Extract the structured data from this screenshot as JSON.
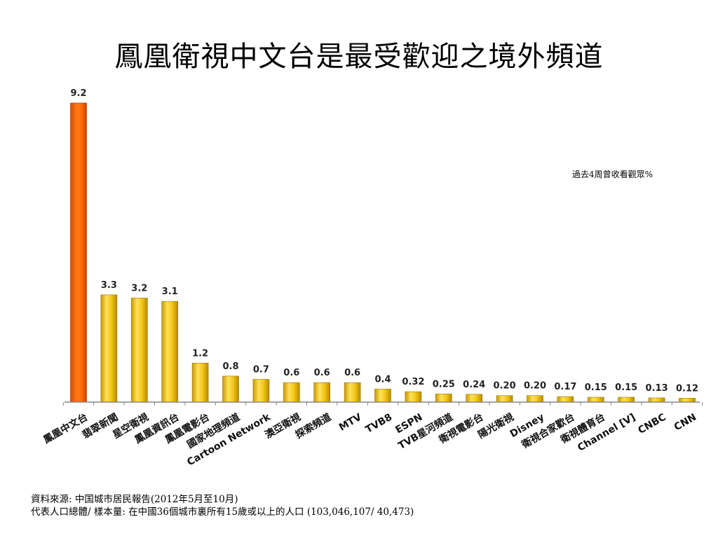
{
  "colors": {
    "highlight_bar": "#ff6a00",
    "bar": "#f0c419",
    "axis": "#888888"
  },
  "chart_data": {
    "type": "bar",
    "title": "鳳凰衛視中文台是最受歡迎之境外頻道",
    "series_note": "過去4周曾收看觀眾%",
    "categories": [
      "鳳凰中文台",
      "翡翠新聞",
      "星空衛視",
      "鳳凰資訊台",
      "鳳凰電影台",
      "國家地理頻道",
      "Cartoon Network",
      "澳亞衛視",
      "探索頻道",
      "MTV",
      "TVB8",
      "ESPN",
      "TVB星河頻道",
      "衛視電影台",
      "陽光衛視",
      "Disney",
      "衛視合家歡台",
      "衛視體育台",
      "Channel [V]",
      "CNBC",
      "CNN"
    ],
    "value_labels": [
      "9.2",
      "3.3",
      "3.2",
      "3.1",
      "1.2",
      "0.8",
      "0.7",
      "0.6",
      "0.6",
      "0.6",
      "0.4",
      "0.32",
      "0.25",
      "0.24",
      "0.20",
      "0.20",
      "0.17",
      "0.15",
      "0.15",
      "0.13",
      "0.12"
    ],
    "values": [
      9.2,
      3.3,
      3.2,
      3.1,
      1.2,
      0.8,
      0.7,
      0.6,
      0.6,
      0.6,
      0.4,
      0.32,
      0.25,
      0.24,
      0.2,
      0.2,
      0.17,
      0.15,
      0.15,
      0.13,
      0.12
    ],
    "highlight_index": 0,
    "ylim": [
      0,
      9.2
    ],
    "grid": false,
    "xlabel": "",
    "ylabel": ""
  },
  "footer": {
    "line1": "資料來源: 中国城市居民報告(2012年5月至10月)",
    "line2": "代表人口總體/ 樣本量: 在中國36個城市裏所有15歲或以上的人口 (103,046,107/ 40,473)"
  }
}
